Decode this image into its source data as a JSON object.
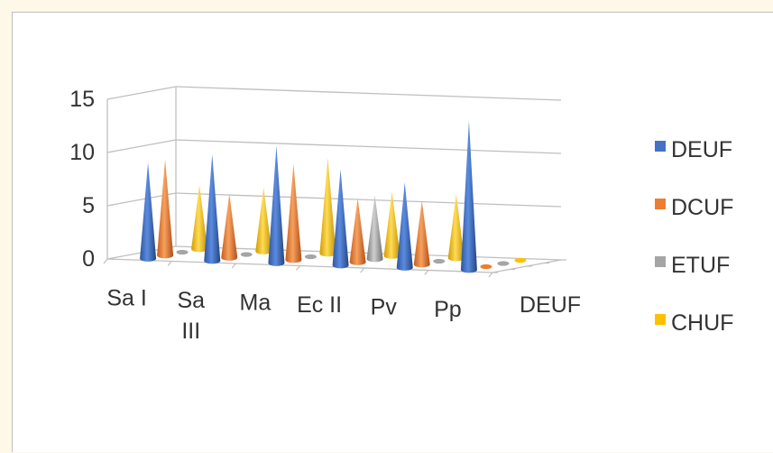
{
  "chart_data": {
    "type": "bar",
    "shape": "cone-3d",
    "categories": [
      "Sa I",
      "Sa III",
      "Ma",
      "Ec II",
      "Pv",
      "Pp"
    ],
    "category_label_lines": [
      [
        "Sa I"
      ],
      [
        "Sa",
        "III"
      ],
      [
        "Ma"
      ],
      [
        "Ec II"
      ],
      [
        "Pv"
      ],
      [
        "Pp"
      ]
    ],
    "depth_axis_label": "DEUF",
    "y_ticks": [
      "0",
      "5",
      "10",
      "15"
    ],
    "ylim": [
      0,
      15
    ],
    "legend_position": "right",
    "series": [
      {
        "name": "DEUF",
        "color": "#4472c4",
        "values": [
          9,
          10,
          11,
          9,
          8,
          14
        ]
      },
      {
        "name": "DCUF",
        "color": "#ed7d31",
        "values": [
          9,
          6,
          9,
          6,
          6,
          0
        ]
      },
      {
        "name": "ETUF",
        "color": "#a5a5a5",
        "values": [
          0,
          0,
          0,
          6,
          0,
          0
        ]
      },
      {
        "name": "CHUF",
        "color": "#ffc000",
        "values": [
          6,
          6,
          9,
          6,
          6,
          0
        ]
      }
    ]
  }
}
